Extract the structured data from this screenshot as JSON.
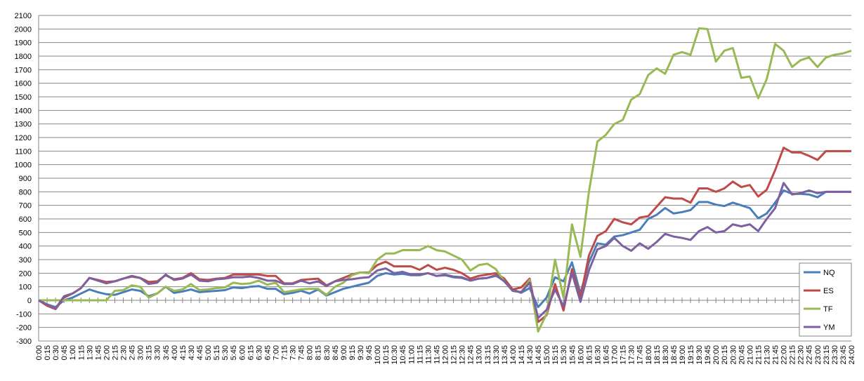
{
  "chart_data": {
    "type": "line",
    "categories": [
      "0:00",
      "0:15",
      "0:30",
      "0:45",
      "1:00",
      "1:15",
      "1:30",
      "1:45",
      "2:00",
      "2:15",
      "2:30",
      "2:45",
      "3:00",
      "3:15",
      "3:30",
      "3:45",
      "4:00",
      "4:15",
      "4:30",
      "4:45",
      "5:00",
      "5:15",
      "5:30",
      "5:45",
      "6:00",
      "6:15",
      "6:30",
      "6:45",
      "7:00",
      "7:15",
      "7:30",
      "7:45",
      "8:00",
      "8:15",
      "8:30",
      "8:45",
      "9:00",
      "9:15",
      "9:30",
      "9:45",
      "10:00",
      "10:15",
      "10:30",
      "10:45",
      "11:00",
      "11:15",
      "11:30",
      "11:45",
      "12:00",
      "12:15",
      "12:30",
      "12:45",
      "13:00",
      "13:15",
      "13:30",
      "13:45",
      "14:00",
      "14:15",
      "14:30",
      "14:45",
      "15:00",
      "15:15",
      "15:30",
      "15:45",
      "16:00",
      "16:15",
      "16:30",
      "16:45",
      "17:00",
      "17:15",
      "17:30",
      "17:45",
      "18:00",
      "18:15",
      "18:30",
      "18:45",
      "19:00",
      "19:15",
      "19:30",
      "19:45",
      "20:00",
      "20:15",
      "20:30",
      "20:45",
      "21:00",
      "21:15",
      "21:30",
      "21:45",
      "22:00",
      "22:15",
      "22:30",
      "22:45",
      "23:00",
      "23:15",
      "23:30",
      "23:45",
      "24:00"
    ],
    "series": [
      {
        "name": "NQ",
        "color": "#4a7ebb",
        "values": [
          0,
          -30,
          -50,
          0,
          20,
          50,
          80,
          60,
          45,
          40,
          60,
          80,
          70,
          30,
          50,
          100,
          55,
          65,
          80,
          60,
          65,
          70,
          75,
          95,
          90,
          100,
          105,
          85,
          85,
          45,
          55,
          70,
          50,
          80,
          35,
          60,
          85,
          100,
          115,
          130,
          180,
          200,
          190,
          195,
          185,
          185,
          200,
          180,
          185,
          170,
          165,
          145,
          160,
          165,
          180,
          150,
          80,
          55,
          90,
          -50,
          20,
          170,
          140,
          280,
          50,
          280,
          420,
          410,
          470,
          480,
          500,
          520,
          600,
          630,
          680,
          640,
          650,
          665,
          725,
          725,
          705,
          695,
          720,
          700,
          680,
          605,
          640,
          720,
          810,
          785,
          785,
          780,
          760,
          800,
          800,
          800,
          800
        ]
      },
      {
        "name": "ES",
        "color": "#be4b48",
        "values": [
          0,
          -40,
          -65,
          20,
          50,
          90,
          165,
          150,
          135,
          140,
          160,
          175,
          165,
          135,
          140,
          185,
          155,
          165,
          200,
          155,
          150,
          160,
          165,
          190,
          190,
          190,
          190,
          180,
          180,
          125,
          125,
          150,
          155,
          160,
          110,
          140,
          165,
          190,
          205,
          205,
          260,
          285,
          250,
          250,
          250,
          225,
          260,
          225,
          240,
          225,
          200,
          160,
          180,
          190,
          200,
          160,
          80,
          95,
          160,
          -160,
          -110,
          120,
          -75,
          230,
          20,
          330,
          475,
          510,
          600,
          575,
          560,
          610,
          620,
          690,
          760,
          750,
          750,
          720,
          825,
          825,
          800,
          825,
          875,
          835,
          850,
          765,
          815,
          960,
          1125,
          1090,
          1090,
          1065,
          1035,
          1100,
          1100,
          1100,
          1100
        ]
      },
      {
        "name": "TF",
        "color": "#98b954",
        "values": [
          0,
          0,
          0,
          0,
          0,
          0,
          0,
          0,
          0,
          70,
          75,
          110,
          100,
          20,
          50,
          100,
          70,
          80,
          120,
          75,
          80,
          90,
          95,
          130,
          120,
          125,
          145,
          115,
          130,
          60,
          70,
          80,
          85,
          85,
          40,
          100,
          130,
          185,
          205,
          200,
          300,
          345,
          345,
          370,
          370,
          370,
          400,
          370,
          360,
          330,
          300,
          220,
          260,
          270,
          230,
          140,
          70,
          60,
          150,
          -230,
          -100,
          300,
          20,
          560,
          320,
          800,
          1170,
          1220,
          1300,
          1330,
          1480,
          1520,
          1660,
          1710,
          1670,
          1810,
          1830,
          1810,
          2005,
          2000,
          1760,
          1840,
          1860,
          1640,
          1650,
          1490,
          1630,
          1890,
          1840,
          1720,
          1770,
          1790,
          1720,
          1790,
          1810,
          1820,
          1840
        ]
      },
      {
        "name": "YM",
        "color": "#7d60a0",
        "values": [
          0,
          -30,
          -60,
          30,
          50,
          90,
          165,
          145,
          125,
          140,
          160,
          180,
          165,
          120,
          130,
          190,
          150,
          160,
          190,
          145,
          140,
          155,
          160,
          170,
          170,
          175,
          165,
          145,
          145,
          120,
          120,
          145,
          125,
          140,
          105,
          140,
          150,
          155,
          165,
          170,
          220,
          235,
          200,
          210,
          190,
          190,
          200,
          180,
          190,
          175,
          170,
          145,
          160,
          165,
          185,
          140,
          70,
          60,
          130,
          -130,
          -70,
          80,
          -45,
          200,
          -10,
          220,
          375,
          400,
          460,
          400,
          365,
          420,
          380,
          430,
          490,
          470,
          460,
          445,
          510,
          540,
          500,
          510,
          560,
          545,
          560,
          510,
          600,
          680,
          865,
          780,
          790,
          810,
          790,
          800,
          800,
          800,
          800
        ]
      }
    ],
    "ylim": [
      -300,
      2100
    ],
    "yticks": [
      -300,
      -200,
      -100,
      0,
      100,
      200,
      300,
      400,
      500,
      600,
      700,
      800,
      900,
      1000,
      1100,
      1200,
      1300,
      1400,
      1500,
      1600,
      1700,
      1800,
      1900,
      2000,
      2100
    ],
    "grid": true,
    "legend": "right"
  }
}
